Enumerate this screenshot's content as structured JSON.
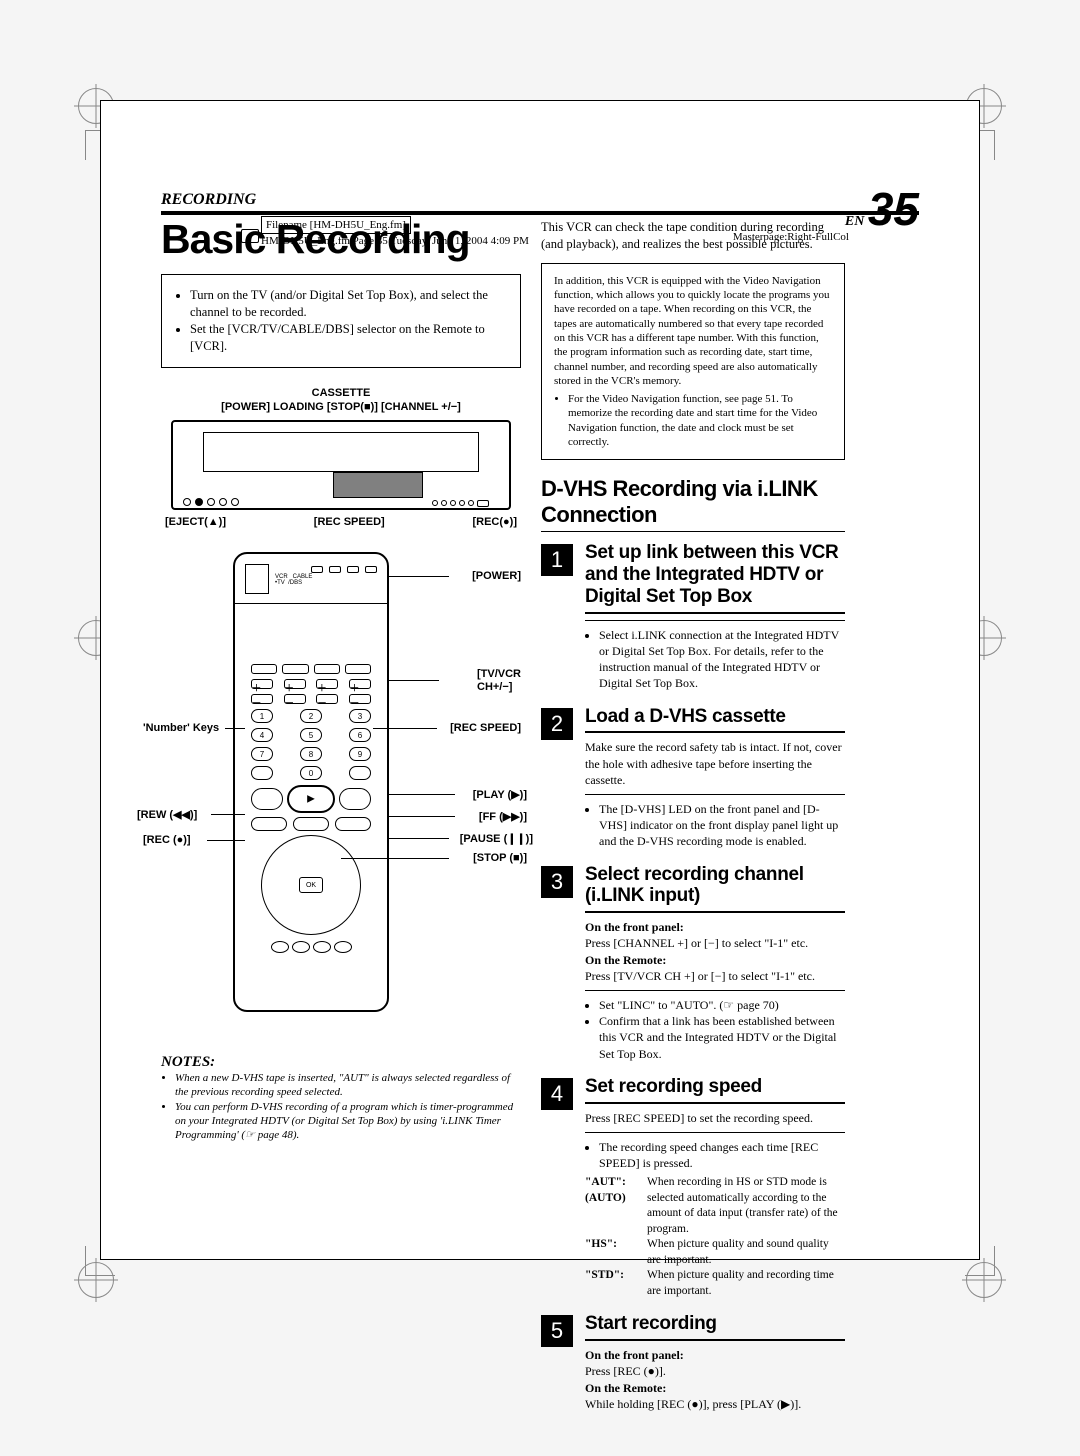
{
  "meta": {
    "filename_label": "Filename [HM-DH5U_Eng.fm]",
    "footer_info": "HM-DH5U_Eng.fm Page 35 Tuesday, June 1, 2004 4:09 PM",
    "masterpage": "Masterpage:Right-FullCol"
  },
  "header": {
    "section": "RECORDING",
    "page_prefix": "EN",
    "page_number": "35"
  },
  "title": "Basic Recording",
  "intro_bullets": [
    "Turn on the TV (and/or Digital Set Top Box), and select the channel to be recorded.",
    "Set the [VCR/TV/CABLE/DBS] selector on the Remote to [VCR]."
  ],
  "vcr": {
    "top_line1": "CASSETTE",
    "top_line2": "[POWER]  LOADING [STOP(■)]    [CHANNEL +/−]",
    "eject": "[EJECT(▲)]",
    "recspeed": "[REC SPEED]",
    "rec": "[REC(●)]"
  },
  "remote_labels": {
    "power": "[POWER]",
    "number_keys": "'Number' Keys",
    "tvvcr": "[TV/VCR\nCH+/−]",
    "recspeed": "[REC SPEED]",
    "play": "[PLAY (▶)]",
    "ff": "[FF (▶▶)]",
    "rew": "[REW (◀◀)]",
    "rec": "[REC (●)]",
    "pause": "[PAUSE (❙❙)]",
    "stop": "[STOP (■)]",
    "switch": "VCR   CABLE\n•TV  /DBS",
    "ok": "OK"
  },
  "notes": {
    "heading": "NOTES:",
    "items": [
      "When a new D-VHS tape is inserted, \"AUT\" is always selected regardless of the previous recording speed selected.",
      "You can perform D-VHS recording of a program which is timer-programmed on your Integrated HDTV (or Digital Set Top Box) by using 'i.LINK Timer Programming' (☞ page 48)."
    ]
  },
  "right_intro": "This VCR can check the tape condition during recording (and playback), and realizes the best possible pictures.",
  "info_box": {
    "text": "In addition, this VCR is equipped with the Video Navigation function, which allows you to quickly locate the programs you have recorded on a tape. When recording on this VCR, the tapes are automatically numbered so that every tape recorded on this VCR has a different tape number. With this function, the program information such as recording date, start time, channel number, and recording speed are also automatically stored in the VCR's memory.",
    "bullet": "For the Video Navigation function, see page 51. To memorize the recording date and start time for the Video Navigation function, the date and clock must be set correctly."
  },
  "sub_title": "D-VHS Recording via i.LINK Connection",
  "steps": [
    {
      "num": "1",
      "title": "Set up link between this VCR and the Integrated HDTV or Digital Set Top Box",
      "body_html": "<hr><ul><li>Select i.LINK connection at the Integrated HDTV or Digital Set Top Box. For details, refer to the instruction manual of the Integrated HDTV or Digital Set Top Box.</li></ul>"
    },
    {
      "num": "2",
      "title": "Load a D-VHS cassette",
      "body_html": "Make sure the record safety tab is intact. If not, cover the hole with adhesive tape before inserting the cassette.<hr><ul><li>The [D-VHS] LED on the front panel and [D-VHS] indicator on the front display panel light up and the D-VHS recording mode is enabled.</li></ul>"
    },
    {
      "num": "3",
      "title": "Select recording channel (i.LINK input)",
      "body_html": "<span class='bold'>On the front panel:</span><br>Press [CHANNEL +] or [−] to select \"I-1\" etc.<br><span class='bold'>On the Remote:</span><br>Press [TV/VCR CH +] or [−] to select \"I-1\" etc.<hr><ul><li>Set \"LINC\" to \"AUTO\". (☞ page 70)</li><li>Confirm that a link has been established between this VCR and the Integrated HDTV or the Digital Set Top Box.</li></ul>"
    },
    {
      "num": "4",
      "title": "Set recording speed",
      "body_html": "Press [REC SPEED] to set the recording speed.<hr><ul><li>The recording speed changes each time [REC SPEED] is pressed.</li></ul>"
    },
    {
      "num": "5",
      "title": "Start recording",
      "body_html": "<span class='bold'>On the front panel:</span><br>Press [REC (●)].<br><span class='bold'>On the Remote:</span><br>While holding [REC (●)], press [PLAY (▶)]."
    }
  ],
  "speed_table": [
    {
      "key": "\"AUT\":\n(AUTO)",
      "val": "When recording in HS or STD mode is selected automatically according to the amount of data input (transfer rate) of the program."
    },
    {
      "key": "\"HS\":",
      "val": "When picture quality and sound quality are important."
    },
    {
      "key": "\"STD\":",
      "val": "When picture quality and recording time are important."
    }
  ]
}
